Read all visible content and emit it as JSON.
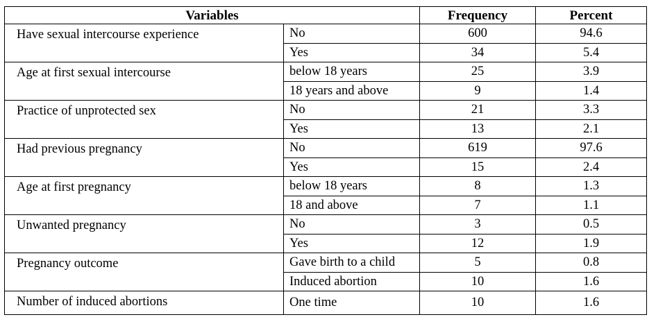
{
  "table": {
    "headers": {
      "variables": "Variables",
      "frequency": "Frequency",
      "percent": "Percent"
    },
    "groups": [
      {
        "variable": "Have sexual intercourse experience",
        "rows": [
          {
            "category": "No",
            "frequency": "600",
            "percent": "94.6"
          },
          {
            "category": "Yes",
            "frequency": "34",
            "percent": "5.4"
          }
        ]
      },
      {
        "variable": "Age at first sexual intercourse",
        "rows": [
          {
            "category": "below 18 years",
            "frequency": "25",
            "percent": "3.9"
          },
          {
            "category": "18 years and above",
            "frequency": "9",
            "percent": "1.4"
          }
        ]
      },
      {
        "variable": "Practice of unprotected sex",
        "rows": [
          {
            "category": "No",
            "frequency": "21",
            "percent": "3.3"
          },
          {
            "category": "Yes",
            "frequency": "13",
            "percent": "2.1"
          }
        ]
      },
      {
        "variable": "Had previous pregnancy",
        "rows": [
          {
            "category": "No",
            "frequency": "619",
            "percent": "97.6"
          },
          {
            "category": "Yes",
            "frequency": "15",
            "percent": "2.4"
          }
        ]
      },
      {
        "variable": "Age at first pregnancy",
        "rows": [
          {
            "category": "below 18 years",
            "frequency": "8",
            "percent": "1.3"
          },
          {
            "category": "18 and above",
            "frequency": "7",
            "percent": "1.1"
          }
        ]
      },
      {
        "variable": "Unwanted pregnancy",
        "rows": [
          {
            "category": "No",
            "frequency": "3",
            "percent": "0.5"
          },
          {
            "category": "Yes",
            "frequency": "12",
            "percent": "1.9"
          }
        ]
      },
      {
        "variable": "Pregnancy outcome",
        "rows": [
          {
            "category": "Gave birth to a child",
            "frequency": "5",
            "percent": "0.8"
          },
          {
            "category": "Induced abortion",
            "frequency": "10",
            "percent": "1.6"
          }
        ]
      },
      {
        "variable": "Number of induced abortions",
        "rows": [
          {
            "category": "One time",
            "frequency": "10",
            "percent": "1.6"
          }
        ]
      }
    ]
  }
}
